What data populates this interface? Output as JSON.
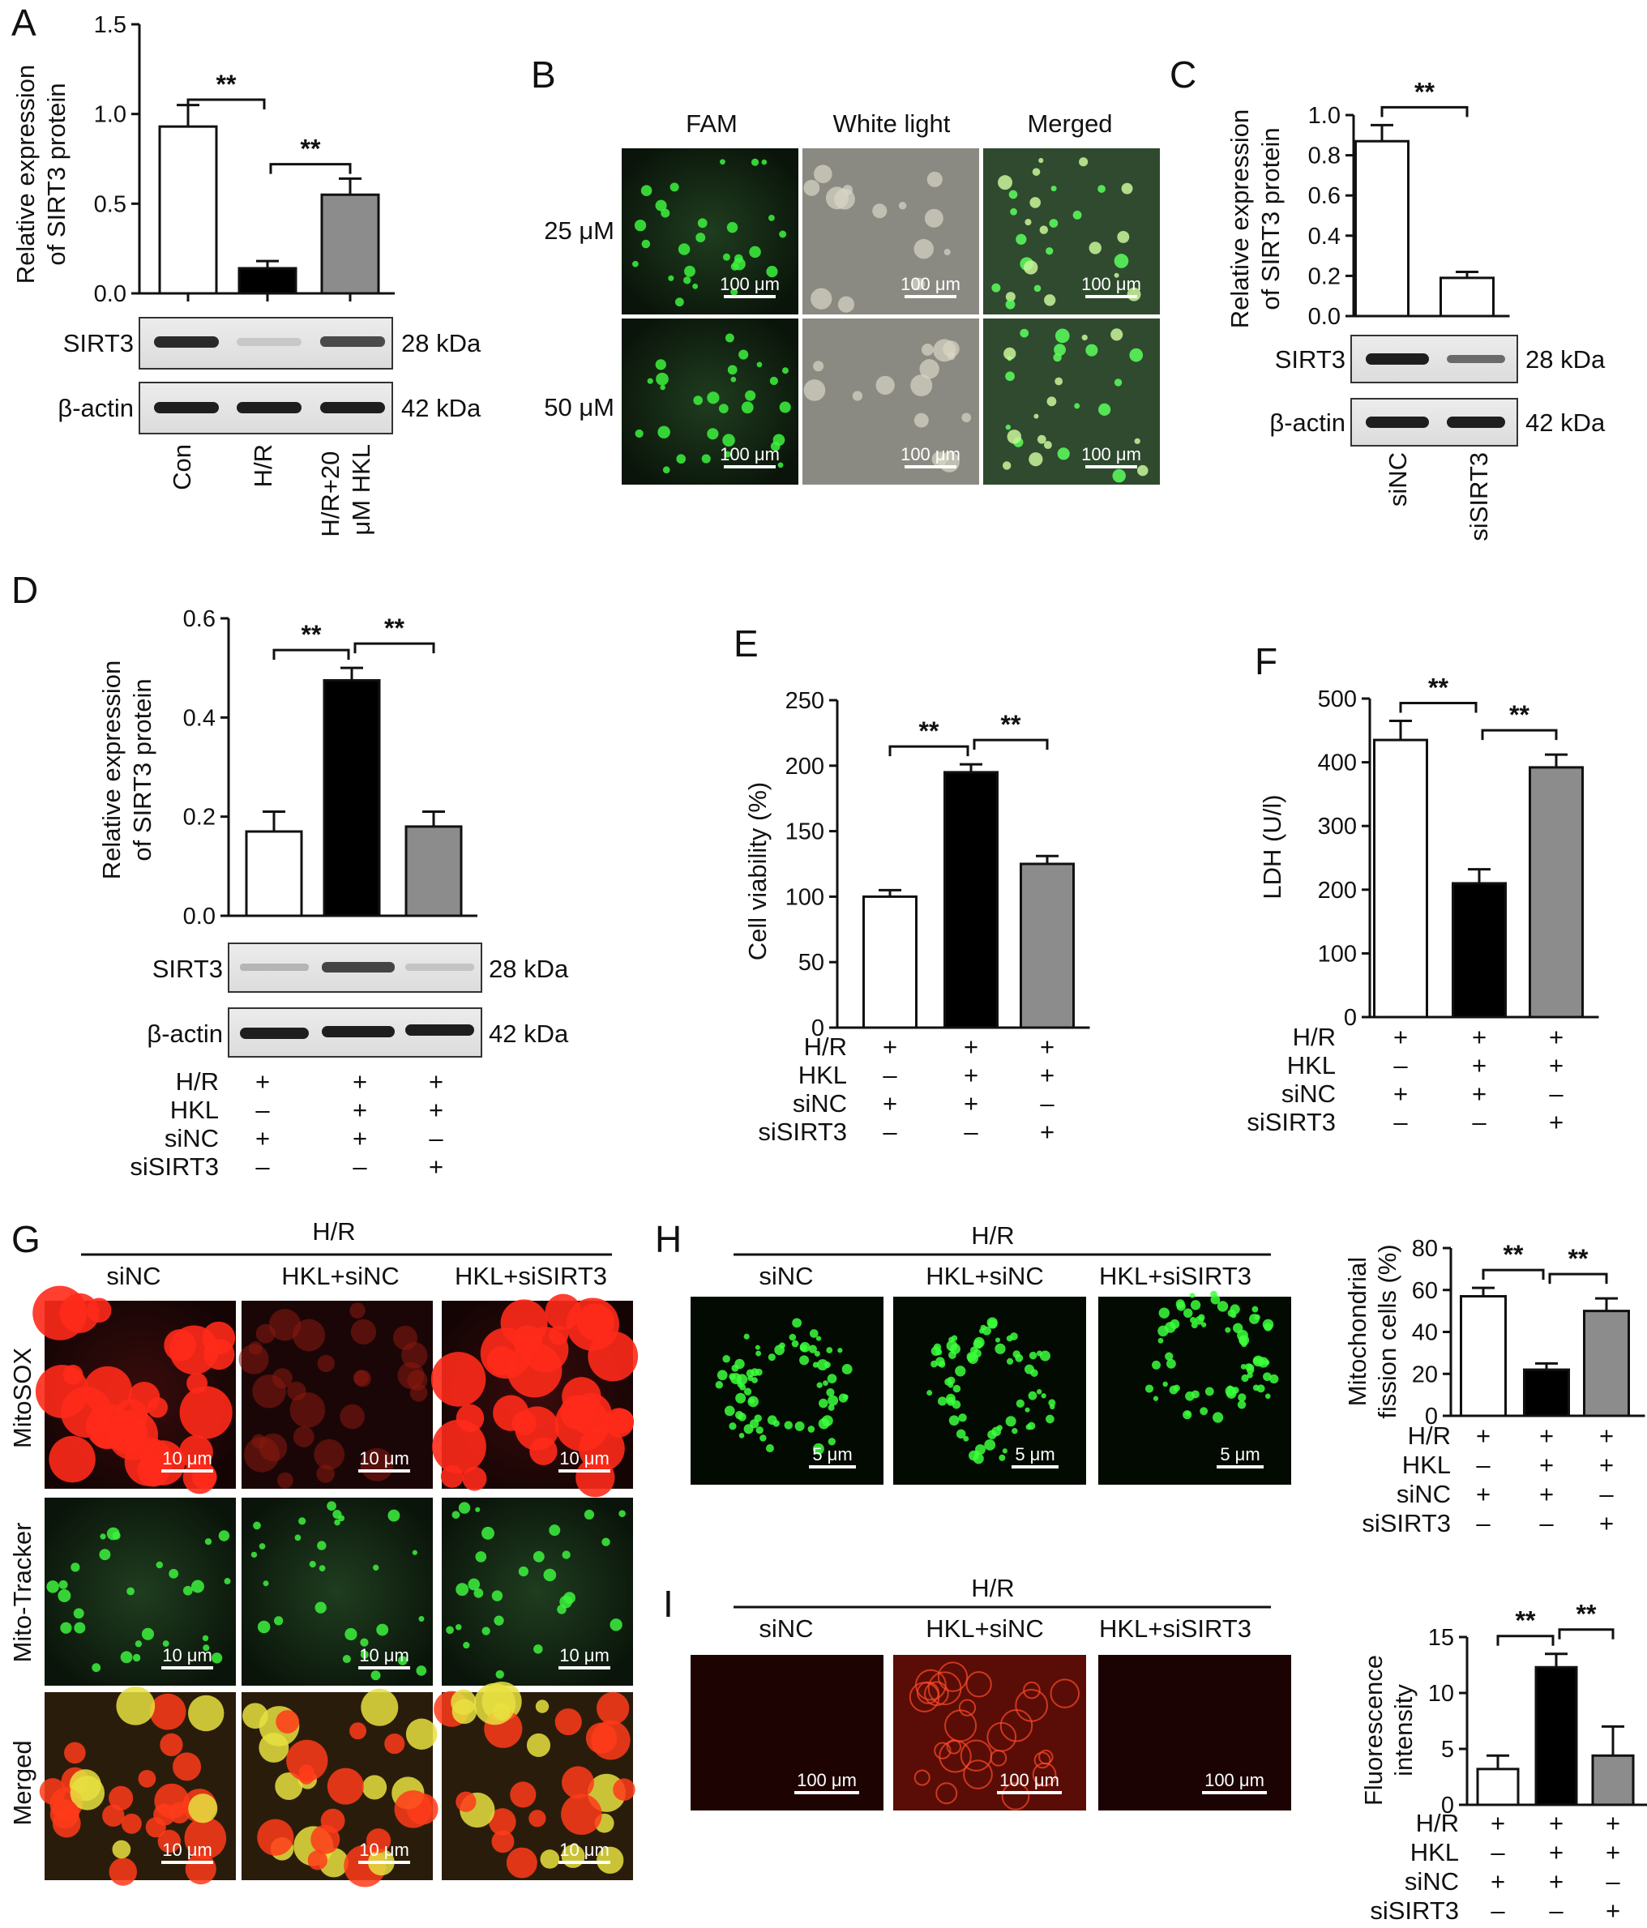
{
  "panels": {
    "A": {
      "letter": "A",
      "ylabel": [
        "Relative expression",
        "of SIRT3 protein"
      ],
      "blot_labels": [
        "SIRT3",
        "β-actin"
      ],
      "blot_sizes": [
        "28 kDa",
        "42 kDa"
      ],
      "xticklabels": [
        "Con",
        "H/R",
        "H/R+20\nμM HKL"
      ]
    },
    "B": {
      "letter": "B",
      "columns": [
        "FAM",
        "White light",
        "Merged"
      ],
      "rows": [
        "25 μM",
        "50 μM"
      ],
      "scale_text": "100 μm"
    },
    "C": {
      "letter": "C",
      "ylabel": [
        "Relative expression",
        "of SIRT3 protein"
      ],
      "blot_labels": [
        "SIRT3",
        "β-actin"
      ],
      "blot_sizes": [
        "28 kDa",
        "42 kDa"
      ],
      "xticklabels": [
        "siNC",
        "siSIRT3"
      ]
    },
    "D": {
      "letter": "D",
      "ylabel": [
        "Relative expression",
        "of SIRT3 protein"
      ],
      "blot_labels": [
        "SIRT3",
        "β-actin"
      ],
      "blot_sizes": [
        "28 kDa",
        "42 kDa"
      ]
    },
    "E": {
      "letter": "E",
      "ylabel": "Cell viability (%)"
    },
    "F": {
      "letter": "F",
      "ylabel": "LDH (U/l)"
    },
    "G": {
      "letter": "G",
      "group_label": "H/R",
      "columns": [
        "siNC",
        "HKL+siNC",
        "HKL+siSIRT3"
      ],
      "rows": [
        "MitoSOX",
        "Mito-Tracker",
        "Merged"
      ],
      "scale_text": "10 μm"
    },
    "H": {
      "letter": "H",
      "group_label": "H/R",
      "columns": [
        "siNC",
        "HKL+siNC",
        "HKL+siSIRT3"
      ],
      "scale_text": "5 μm",
      "ylabel": [
        "Mitochondrial",
        "fission cells (%)"
      ]
    },
    "I": {
      "letter": "I",
      "group_label": "H/R",
      "columns": [
        "siNC",
        "HKL+siNC",
        "HKL+siSIRT3"
      ],
      "scale_text": "100 μm",
      "ylabel": [
        "Fluorescence",
        "intensity"
      ]
    }
  },
  "treatment_rows": {
    "names": [
      "H/R",
      "HKL",
      "siNC",
      "siSIRT3"
    ],
    "values": [
      [
        "+",
        "+",
        "+"
      ],
      [
        "–",
        "+",
        "+"
      ],
      [
        "+",
        "+",
        "–"
      ],
      [
        "–",
        "–",
        "+"
      ]
    ]
  },
  "significance": "**",
  "colors": {
    "white_bar": "#ffffff",
    "black_bar": "#000000",
    "grey_bar": "#8c8c8c"
  },
  "chart_data": [
    {
      "id": "A",
      "type": "bar",
      "categories": [
        "Con",
        "H/R",
        "H/R+20 μM HKL"
      ],
      "values": [
        0.93,
        0.14,
        0.55
      ],
      "errors": [
        0.12,
        0.04,
        0.09
      ],
      "ylim": [
        0,
        1.5
      ],
      "yticks": [
        0.0,
        0.5,
        1.0,
        1.5
      ],
      "tick_decimals": 1,
      "colors": [
        "#ffffff",
        "#000000",
        "#8c8c8c"
      ],
      "brackets": [
        [
          0,
          1,
          "**"
        ],
        [
          1,
          2,
          "**"
        ]
      ]
    },
    {
      "id": "C",
      "type": "bar",
      "categories": [
        "siNC",
        "siSIRT3"
      ],
      "values": [
        0.87,
        0.19
      ],
      "errors": [
        0.08,
        0.03
      ],
      "ylim": [
        0,
        1.0
      ],
      "yticks": [
        0.0,
        0.2,
        0.4,
        0.6,
        0.8,
        1.0
      ],
      "tick_decimals": 1,
      "colors": [
        "#ffffff",
        "#ffffff"
      ],
      "brackets": [
        [
          0,
          1,
          "**"
        ]
      ]
    },
    {
      "id": "D",
      "type": "bar",
      "values": [
        0.17,
        0.475,
        0.18
      ],
      "errors": [
        0.04,
        0.025,
        0.03
      ],
      "ylim": [
        0,
        0.6
      ],
      "yticks": [
        0.0,
        0.2,
        0.4,
        0.6
      ],
      "tick_decimals": 1,
      "colors": [
        "#ffffff",
        "#000000",
        "#8c8c8c"
      ],
      "brackets": [
        [
          0,
          1,
          "**"
        ],
        [
          1,
          2,
          "**"
        ]
      ]
    },
    {
      "id": "E",
      "type": "bar",
      "values": [
        100,
        195,
        125
      ],
      "errors": [
        5,
        6,
        6
      ],
      "ylim": [
        0,
        250
      ],
      "yticks": [
        0,
        50,
        100,
        150,
        200,
        250
      ],
      "tick_decimals": 0,
      "colors": [
        "#ffffff",
        "#000000",
        "#8c8c8c"
      ],
      "brackets": [
        [
          0,
          1,
          "**"
        ],
        [
          1,
          2,
          "**"
        ]
      ]
    },
    {
      "id": "F",
      "type": "bar",
      "values": [
        435,
        210,
        392
      ],
      "errors": [
        30,
        22,
        20
      ],
      "ylim": [
        0,
        500
      ],
      "yticks": [
        0,
        100,
        200,
        300,
        400,
        500
      ],
      "tick_decimals": 0,
      "colors": [
        "#ffffff",
        "#000000",
        "#8c8c8c"
      ],
      "brackets": [
        [
          0,
          1,
          "**"
        ],
        [
          1,
          2,
          "**"
        ]
      ]
    },
    {
      "id": "H",
      "type": "bar",
      "values": [
        57,
        22,
        50
      ],
      "errors": [
        4,
        3,
        6
      ],
      "ylim": [
        0,
        80
      ],
      "yticks": [
        0,
        20,
        40,
        60,
        80
      ],
      "tick_decimals": 0,
      "colors": [
        "#ffffff",
        "#000000",
        "#8c8c8c"
      ],
      "brackets": [
        [
          0,
          1,
          "**"
        ],
        [
          1,
          2,
          "**"
        ]
      ]
    },
    {
      "id": "I",
      "type": "bar",
      "values": [
        3.2,
        12.3,
        4.4
      ],
      "errors": [
        1.2,
        1.2,
        2.6
      ],
      "ylim": [
        0,
        15
      ],
      "yticks": [
        0,
        5,
        10,
        15
      ],
      "tick_decimals": 0,
      "colors": [
        "#ffffff",
        "#000000",
        "#8c8c8c"
      ],
      "brackets": [
        [
          0,
          1,
          "**"
        ],
        [
          1,
          2,
          "**"
        ]
      ]
    }
  ]
}
